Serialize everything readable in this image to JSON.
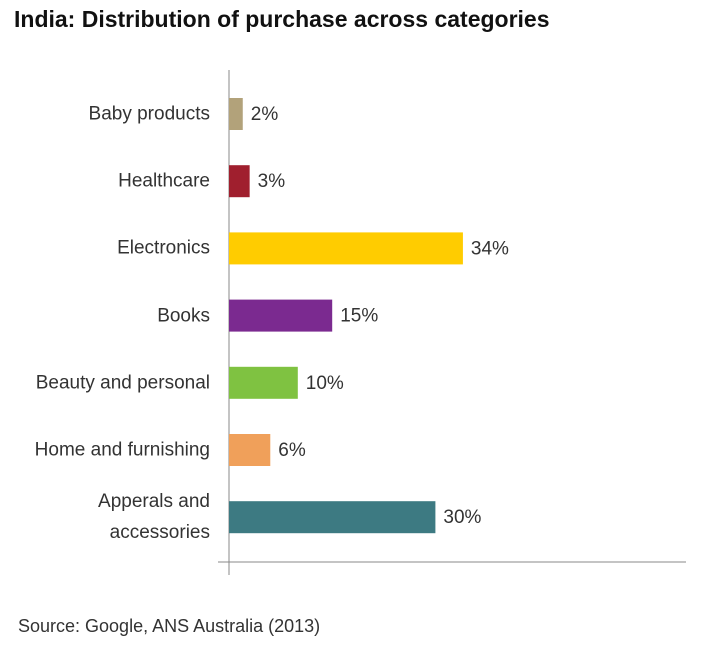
{
  "chart_data": {
    "type": "bar",
    "orientation": "horizontal",
    "title": "India: Distribution of purchase across categories",
    "categories": [
      "Baby products",
      "Healthcare",
      "Electronics",
      "Books",
      "Beauty and personal",
      "Home and furnishing",
      "Apperals and accessories"
    ],
    "values": [
      2,
      3,
      34,
      15,
      10,
      6,
      30
    ],
    "value_labels": [
      "2%",
      "3%",
      "34%",
      "15%",
      "10%",
      "6%",
      "30%"
    ],
    "colors": [
      "#b2a27a",
      "#a01f2e",
      "#ffcc00",
      "#7b2a90",
      "#7fc241",
      "#f0a05a",
      "#3d7a82"
    ],
    "source": "Source: Google, ANS Australia (2013)"
  }
}
